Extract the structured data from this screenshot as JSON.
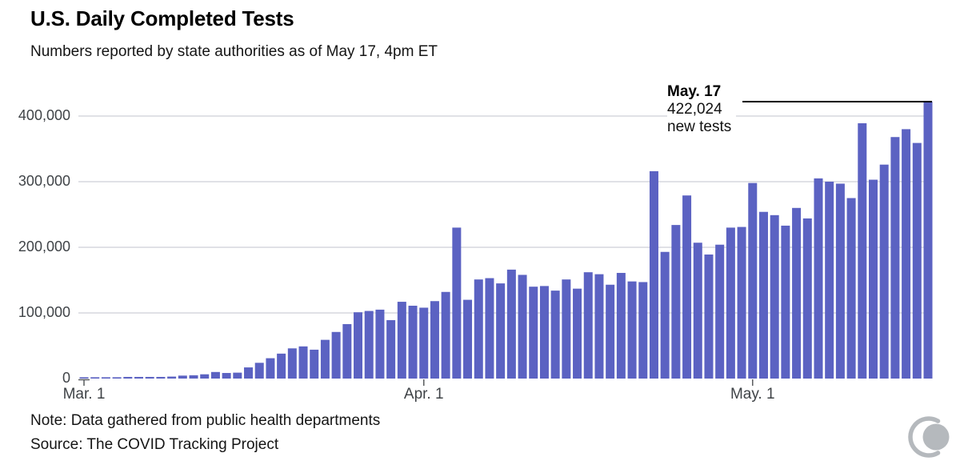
{
  "header": {
    "title": "U.S. Daily Completed Tests",
    "subtitle": "Numbers reported by state authorities as of May 17, 4pm ET"
  },
  "annotation": {
    "date_label": "May. 17",
    "value_label": "422,024",
    "unit_label": "new tests"
  },
  "footer": {
    "note": "Note: Data gathered from public health departments",
    "source": "Source: The COVID Tracking Project"
  },
  "chart_data": {
    "type": "bar",
    "title": "U.S. Daily Completed Tests",
    "ylabel": "",
    "xlabel": "",
    "ylim": [
      0,
      430000
    ],
    "grid": "horizontal",
    "bar_color": "#5b62c2",
    "gridline_color": "#d5d7de",
    "axis_text_color": "#3f4347",
    "tick_color": "#595c5e",
    "annotation_line_color": "#000000",
    "y_ticks": [
      0,
      100000,
      200000,
      300000,
      400000
    ],
    "y_tick_labels": [
      "0",
      "100,000",
      "200,000",
      "300,000",
      "400,000"
    ],
    "x_tick_labels": [
      "Mar. 1",
      "Apr. 1",
      "May. 1"
    ],
    "x_tick_day_index": [
      0,
      31,
      61
    ],
    "first_bar_label": "Mar. 1",
    "last_bar_label": "May. 17",
    "highlighted_value": 422024,
    "values": [
      2000,
      2000,
      2000,
      2000,
      2500,
      2500,
      2500,
      2500,
      3000,
      4500,
      5000,
      6500,
      10000,
      8500,
      9000,
      17000,
      24000,
      31000,
      38000,
      46000,
      49000,
      44000,
      59000,
      71000,
      83000,
      101000,
      103000,
      105000,
      89000,
      117000,
      111000,
      108000,
      118000,
      132000,
      230000,
      120000,
      151000,
      153000,
      145000,
      166000,
      158000,
      140000,
      141000,
      134000,
      151000,
      137000,
      162000,
      159000,
      143000,
      161000,
      148000,
      147000,
      316000,
      193000,
      234000,
      279000,
      207000,
      189000,
      204000,
      230000,
      231000,
      298000,
      254000,
      249000,
      233000,
      260000,
      244000,
      305000,
      300000,
      297000,
      275000,
      389000,
      303000,
      326000,
      368000,
      380000,
      359000,
      422024
    ]
  }
}
